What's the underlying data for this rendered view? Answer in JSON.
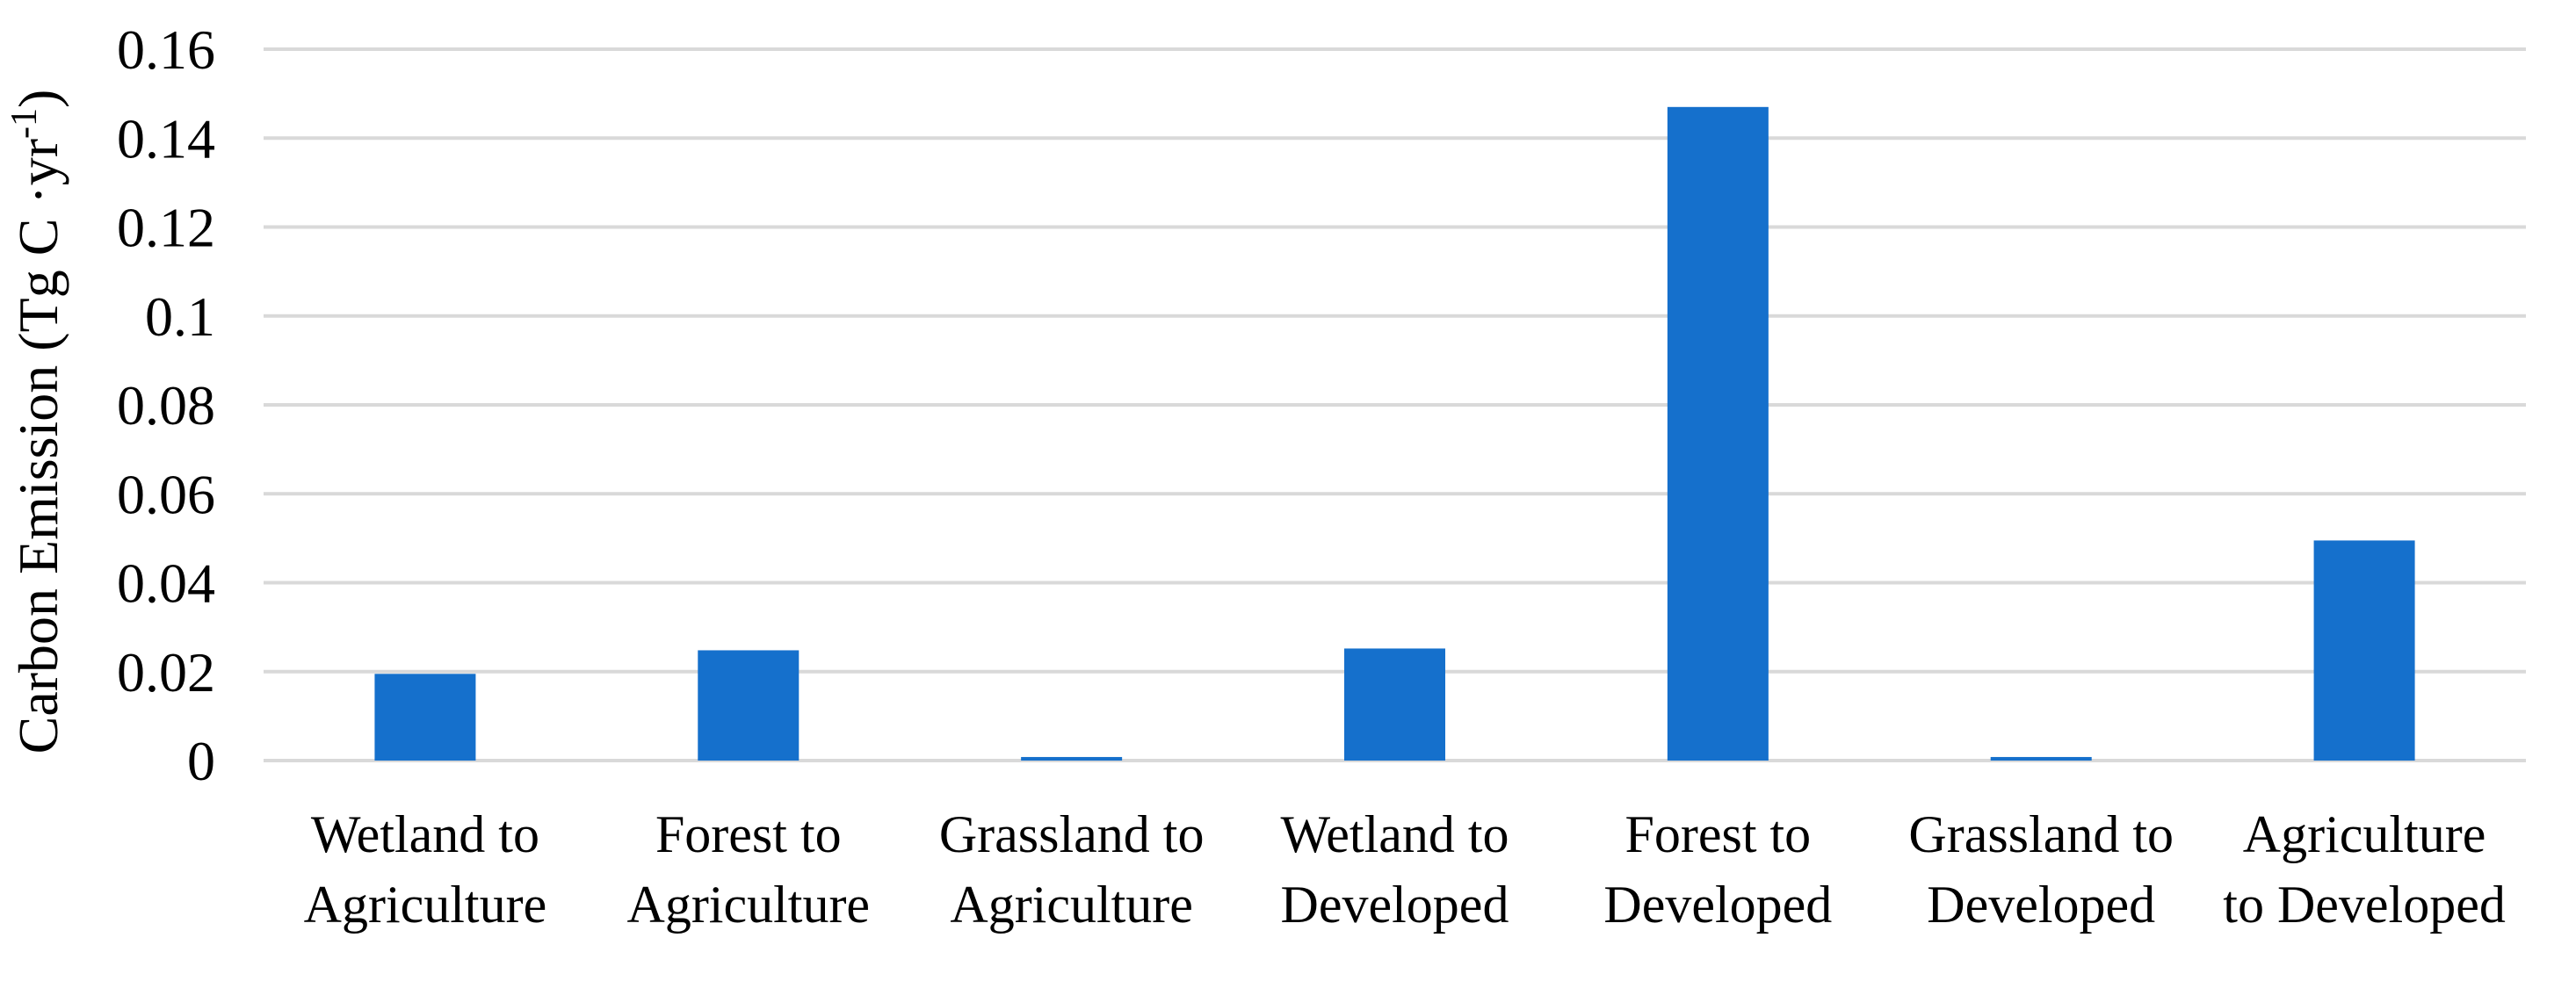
{
  "chart_data": {
    "type": "bar",
    "title": "",
    "xlabel": "",
    "ylabel": "Carbon Emission (Tg C ·yr",
    "ylabel_superscript": "-1",
    "ylabel_suffix": ")",
    "categories": [
      "Wetland  to Agriculture",
      "Forest to Agriculture",
      "Grassland to Agriculture",
      "Wetland  to Developed",
      "Forest to Developed",
      "Grassland to Developed",
      "Agriculture to Developed"
    ],
    "category_lines": [
      [
        "Wetland  to",
        "Agriculture"
      ],
      [
        "Forest to",
        "Agriculture"
      ],
      [
        "Grassland to",
        "Agriculture"
      ],
      [
        "Wetland  to",
        "Developed"
      ],
      [
        "Forest to",
        "Developed"
      ],
      [
        "Grassland to",
        "Developed"
      ],
      [
        "Agriculture",
        "to Developed"
      ]
    ],
    "values": [
      0.0195,
      0.0248,
      0.0008,
      0.0252,
      0.147,
      0.0008,
      0.0495
    ],
    "ylim": [
      0,
      0.16
    ],
    "yticks": [
      "0",
      "0.02",
      "0.04",
      "0.06",
      "0.08",
      "0.1",
      "0.12",
      "0.14",
      "0.16"
    ],
    "grid": true,
    "bar_color": "#1570CC",
    "grid_color": "#D9D9D9"
  }
}
